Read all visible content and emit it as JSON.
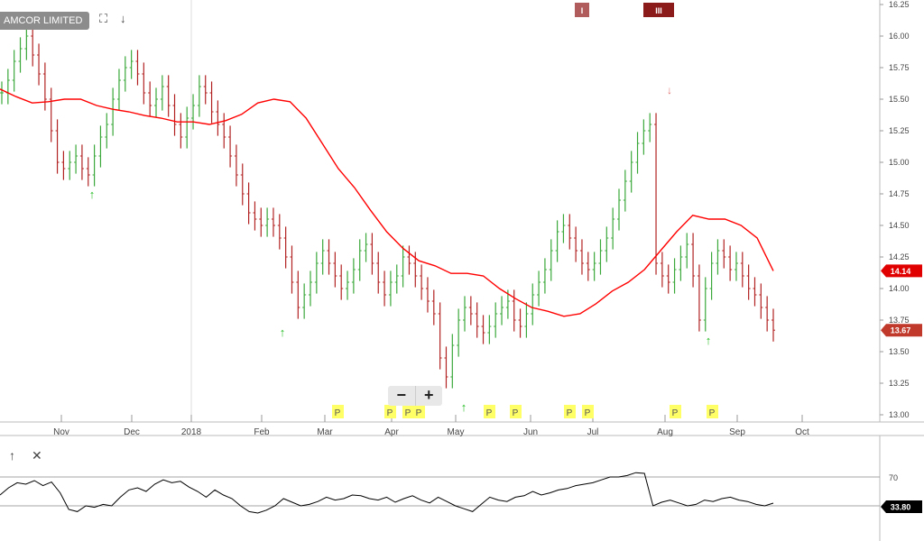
{
  "header": {
    "instrument_label": "AMCOR LIMITED",
    "expand_icon": "expand-icon",
    "download_icon": "down-arrow-icon"
  },
  "price_badges": {
    "moving_average_last": "14.14",
    "close_last": "13.67",
    "oscillator_last": "33.80"
  },
  "top_markers": [
    "I",
    "III"
  ],
  "colors": {
    "up_bar": "#3aa83a",
    "down_bar": "#b22222",
    "moving_average": "#ff0000",
    "signal_up": "#22bb22",
    "signal_down": "#e07070",
    "event_marker": "#ffff66",
    "oscillator": "#000000",
    "oscillator_fill": "#999999",
    "ma_badge": "#e00000",
    "close_badge": "#c0392b",
    "osc_badge": "#000000"
  },
  "zoom": {
    "minus": "−",
    "plus": "+"
  },
  "oscillator_panel": {
    "collapse_icon": "up-arrow-icon",
    "close_icon": "close-icon",
    "level_label": "70"
  },
  "chart_data": {
    "type": "ohlc",
    "x_ticks": [
      "Nov",
      "Dec",
      "2018",
      "Feb",
      "Mar",
      "Apr",
      "May",
      "Jun",
      "Jul",
      "Aug",
      "Sep",
      "Oct"
    ],
    "y_ticks": [
      "13.00",
      "13.25",
      "13.50",
      "13.75",
      "14.00",
      "14.25",
      "14.50",
      "14.75",
      "15.00",
      "15.25",
      "15.50",
      "15.75",
      "16.00",
      "16.25"
    ],
    "ylim": [
      13.0,
      16.25
    ],
    "series": [
      {
        "name": "price_close",
        "values": [
          15.55,
          15.65,
          15.8,
          15.9,
          16.0,
          15.85,
          15.7,
          15.5,
          15.25,
          15.0,
          14.95,
          15.0,
          15.05,
          14.95,
          14.9,
          15.05,
          15.2,
          15.3,
          15.5,
          15.65,
          15.75,
          15.8,
          15.7,
          15.55,
          15.45,
          15.5,
          15.6,
          15.45,
          15.3,
          15.2,
          15.35,
          15.45,
          15.6,
          15.55,
          15.4,
          15.3,
          15.2,
          15.05,
          14.9,
          14.75,
          14.6,
          14.55,
          14.5,
          14.55,
          14.5,
          14.4,
          14.25,
          14.05,
          13.85,
          13.95,
          14.05,
          14.2,
          14.3,
          14.2,
          14.1,
          14.0,
          14.05,
          14.15,
          14.3,
          14.35,
          14.2,
          14.05,
          13.95,
          14.05,
          14.1,
          14.25,
          14.2,
          14.1,
          14.0,
          13.9,
          13.8,
          13.45,
          13.3,
          13.55,
          13.75,
          13.85,
          13.8,
          13.7,
          13.65,
          13.7,
          13.8,
          13.85,
          13.9,
          13.75,
          13.7,
          13.8,
          13.95,
          14.05,
          14.15,
          14.3,
          14.45,
          14.5,
          14.4,
          14.3,
          14.2,
          14.15,
          14.2,
          14.3,
          14.4,
          14.55,
          14.7,
          14.85,
          15.0,
          15.15,
          15.25,
          15.3,
          14.2,
          14.1,
          14.05,
          14.15,
          14.25,
          14.35,
          14.1,
          13.75,
          14.0,
          14.2,
          14.3,
          14.25,
          14.15,
          14.2,
          14.1,
          14.0,
          13.95,
          13.85,
          13.75,
          13.67
        ]
      },
      {
        "name": "moving_average",
        "values": [
          15.58,
          15.52,
          15.47,
          15.48,
          15.5,
          15.5,
          15.45,
          15.42,
          15.4,
          15.37,
          15.35,
          15.32,
          15.32,
          15.3,
          15.33,
          15.38,
          15.47,
          15.5,
          15.48,
          15.35,
          15.15,
          14.95,
          14.8,
          14.62,
          14.45,
          14.32,
          14.22,
          14.18,
          14.12,
          14.12,
          14.1,
          14.0,
          13.92,
          13.85,
          13.82,
          13.78,
          13.8,
          13.88,
          13.98,
          14.05,
          14.15,
          14.3,
          14.45,
          14.58,
          14.55,
          14.55,
          14.5,
          14.4,
          14.14
        ]
      },
      {
        "name": "oscillator",
        "values": [
          45,
          55,
          62,
          60,
          65,
          58,
          63,
          48,
          25,
          22,
          30,
          28,
          32,
          30,
          42,
          52,
          55,
          50,
          60,
          66,
          62,
          64,
          56,
          50,
          42,
          52,
          45,
          40,
          30,
          22,
          20,
          24,
          30,
          40,
          35,
          30,
          32,
          36,
          42,
          38,
          40,
          45,
          44,
          40,
          38,
          42,
          35,
          40,
          44,
          38,
          34,
          42,
          36,
          30,
          26,
          22,
          32,
          42,
          38,
          36,
          42,
          44,
          50,
          45,
          48,
          52,
          54,
          58,
          60,
          62,
          66,
          70,
          70,
          72,
          76,
          75,
          30,
          35,
          38,
          34,
          30,
          32,
          38,
          36,
          40,
          42,
          38,
          36,
          32,
          30,
          33.8
        ]
      }
    ],
    "signals_up": [
      "Nov",
      "Feb",
      "May",
      "Aug"
    ],
    "signals_down": [
      "Aug"
    ],
    "event_markers": [
      "P",
      "P",
      "P",
      "P",
      "P",
      "P",
      "P",
      "P",
      "P",
      "P",
      "P"
    ],
    "oscillator_level": 70
  }
}
